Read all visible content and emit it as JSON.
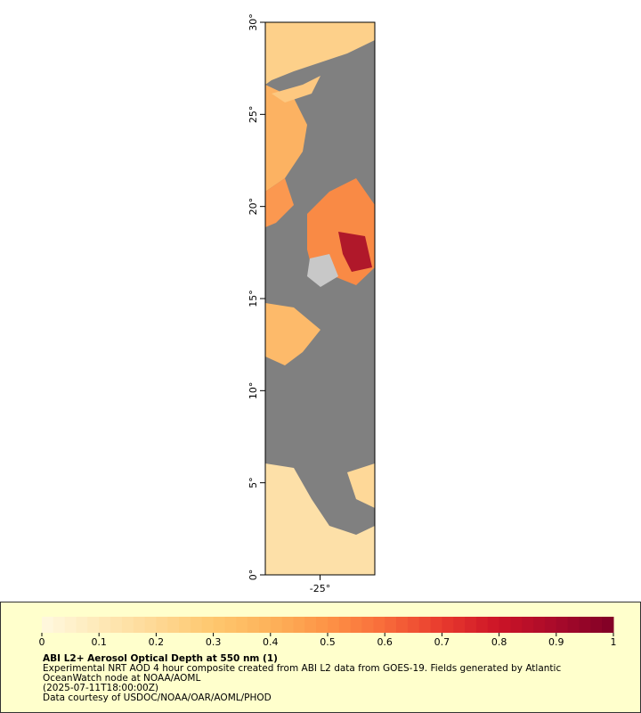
{
  "map": {
    "ylim": [
      0,
      30
    ],
    "yticks": [
      {
        "value": 0,
        "label": "0°"
      },
      {
        "value": 5,
        "label": "5°"
      },
      {
        "value": 10,
        "label": "10°"
      },
      {
        "value": 15,
        "label": "15°"
      },
      {
        "value": 20,
        "label": "20°"
      },
      {
        "value": 25,
        "label": "25°"
      },
      {
        "value": 30,
        "label": "30°"
      }
    ],
    "xlim": [
      -28,
      -22
    ],
    "xticks": [
      {
        "value": -25,
        "label": "-25°"
      }
    ]
  },
  "colorbar": {
    "range": [
      0,
      1
    ],
    "ticks": [
      0,
      0.1,
      0.2,
      0.3,
      0.4,
      0.5,
      0.6,
      0.7,
      0.8,
      0.9,
      1
    ],
    "colors": [
      "#fff8e0",
      "#fee9b8",
      "#fed894",
      "#fec76e",
      "#fdb25a",
      "#fd9346",
      "#f86b3a",
      "#e83a2e",
      "#cc1427",
      "#a80a2a",
      "#800026"
    ]
  },
  "caption": {
    "title": "ABI L2+ Aerosol Optical Depth at 550 nm (1)",
    "lines": [
      "Experimental NRT AOD 4 hour composite created from ABI L2 data from GOES-19. Fields generated by Atlantic",
      "OceanWatch node at NOAA/AOML",
      "(2025-07-11T18:00:00Z)",
      "Data courtesy of USDOC/NOAA/OAR/AOML/PHOD"
    ]
  }
}
